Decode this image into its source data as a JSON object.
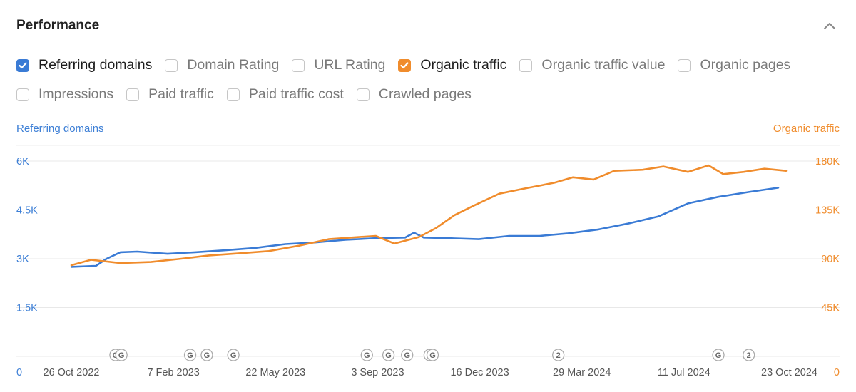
{
  "panel": {
    "title": "Performance"
  },
  "icons": {
    "collapse": "chevron-up-icon",
    "checkbox_checked": "checkmark-icon"
  },
  "metrics": [
    {
      "label": "Referring domains",
      "checked": true,
      "color": "#3a7bd5"
    },
    {
      "label": "Domain Rating",
      "checked": false
    },
    {
      "label": "URL Rating",
      "checked": false
    },
    {
      "label": "Organic traffic",
      "checked": true,
      "color": "#f08c2c"
    },
    {
      "label": "Organic traffic value",
      "checked": false
    },
    {
      "label": "Organic pages",
      "checked": false
    },
    {
      "label": "Impressions",
      "checked": false
    },
    {
      "label": "Paid traffic",
      "checked": false
    },
    {
      "label": "Paid traffic cost",
      "checked": false
    },
    {
      "label": "Crawled pages",
      "checked": false
    }
  ],
  "chart_data": {
    "type": "line",
    "left_axis_label": "Referring domains",
    "right_axis_label": "Organic traffic",
    "left_ticks": [
      "0",
      "1.5K",
      "3K",
      "4.5K",
      "6K"
    ],
    "right_ticks": [
      "0",
      "45K",
      "90K",
      "135K",
      "180K"
    ],
    "left_ylim": [
      0,
      6000
    ],
    "right_ylim": [
      0,
      180000
    ],
    "x_tick_labels": [
      "26 Oct 2022",
      "7 Feb 2023",
      "22 May 2023",
      "3 Sep 2023",
      "16 Dec 2023",
      "29 Mar 2024",
      "11 Jul 2024",
      "23 Oct 2024"
    ],
    "x_range": [
      "2022-10-26",
      "2024-10-23"
    ],
    "grid": true,
    "series": [
      {
        "name": "Referring domains",
        "axis": "left",
        "color": "#3a7bd5",
        "x": [
          "2022-10-26",
          "2022-11-20",
          "2022-12-01",
          "2022-12-15",
          "2023-01-01",
          "2023-02-01",
          "2023-03-01",
          "2023-04-01",
          "2023-05-01",
          "2023-06-01",
          "2023-07-01",
          "2023-08-01",
          "2023-09-01",
          "2023-10-01",
          "2023-10-10",
          "2023-10-20",
          "2023-11-15",
          "2023-12-15",
          "2024-01-15",
          "2024-02-15",
          "2024-03-15",
          "2024-04-15",
          "2024-05-15",
          "2024-06-15",
          "2024-07-15",
          "2024-08-15",
          "2024-09-15",
          "2024-10-15"
        ],
        "values": [
          2750,
          2780,
          3000,
          3200,
          3220,
          3150,
          3200,
          3260,
          3330,
          3450,
          3500,
          3580,
          3630,
          3650,
          3800,
          3650,
          3630,
          3600,
          3700,
          3700,
          3780,
          3900,
          4080,
          4300,
          4700,
          4900,
          5050,
          5180
        ]
      },
      {
        "name": "Organic traffic",
        "axis": "right",
        "color": "#f08c2c",
        "x": [
          "2022-10-26",
          "2022-11-15",
          "2022-12-15",
          "2023-01-15",
          "2023-02-15",
          "2023-03-15",
          "2023-04-15",
          "2023-05-15",
          "2023-06-15",
          "2023-07-15",
          "2023-08-15",
          "2023-09-01",
          "2023-09-20",
          "2023-10-15",
          "2023-11-01",
          "2023-11-20",
          "2023-12-10",
          "2024-01-05",
          "2024-02-01",
          "2024-03-01",
          "2024-03-20",
          "2024-04-10",
          "2024-05-01",
          "2024-05-30",
          "2024-06-20",
          "2024-07-15",
          "2024-08-05",
          "2024-08-20",
          "2024-09-10",
          "2024-10-01",
          "2024-10-23"
        ],
        "values": [
          84000,
          89000,
          86000,
          87000,
          90000,
          93000,
          95000,
          97000,
          102000,
          108000,
          110000,
          111000,
          104000,
          110000,
          118000,
          130000,
          139000,
          150000,
          155000,
          160000,
          165000,
          163000,
          171000,
          172000,
          175000,
          170000,
          176000,
          168000,
          170000,
          173000,
          171000
        ]
      }
    ],
    "update_markers": [
      {
        "date": "2022-12-10",
        "label": "G"
      },
      {
        "date": "2022-12-16",
        "label": "G"
      },
      {
        "date": "2023-02-24",
        "label": "G"
      },
      {
        "date": "2023-03-13",
        "label": "G"
      },
      {
        "date": "2023-04-09",
        "label": "G"
      },
      {
        "date": "2023-08-23",
        "label": "G"
      },
      {
        "date": "2023-09-14",
        "label": "G"
      },
      {
        "date": "2023-10-03",
        "label": "G"
      },
      {
        "date": "2023-10-26",
        "label": "G"
      },
      {
        "date": "2023-10-29",
        "label": "G"
      },
      {
        "date": "2024-03-05",
        "label": "2"
      },
      {
        "date": "2024-08-15",
        "label": "G"
      },
      {
        "date": "2024-09-15",
        "label": "2"
      }
    ]
  }
}
